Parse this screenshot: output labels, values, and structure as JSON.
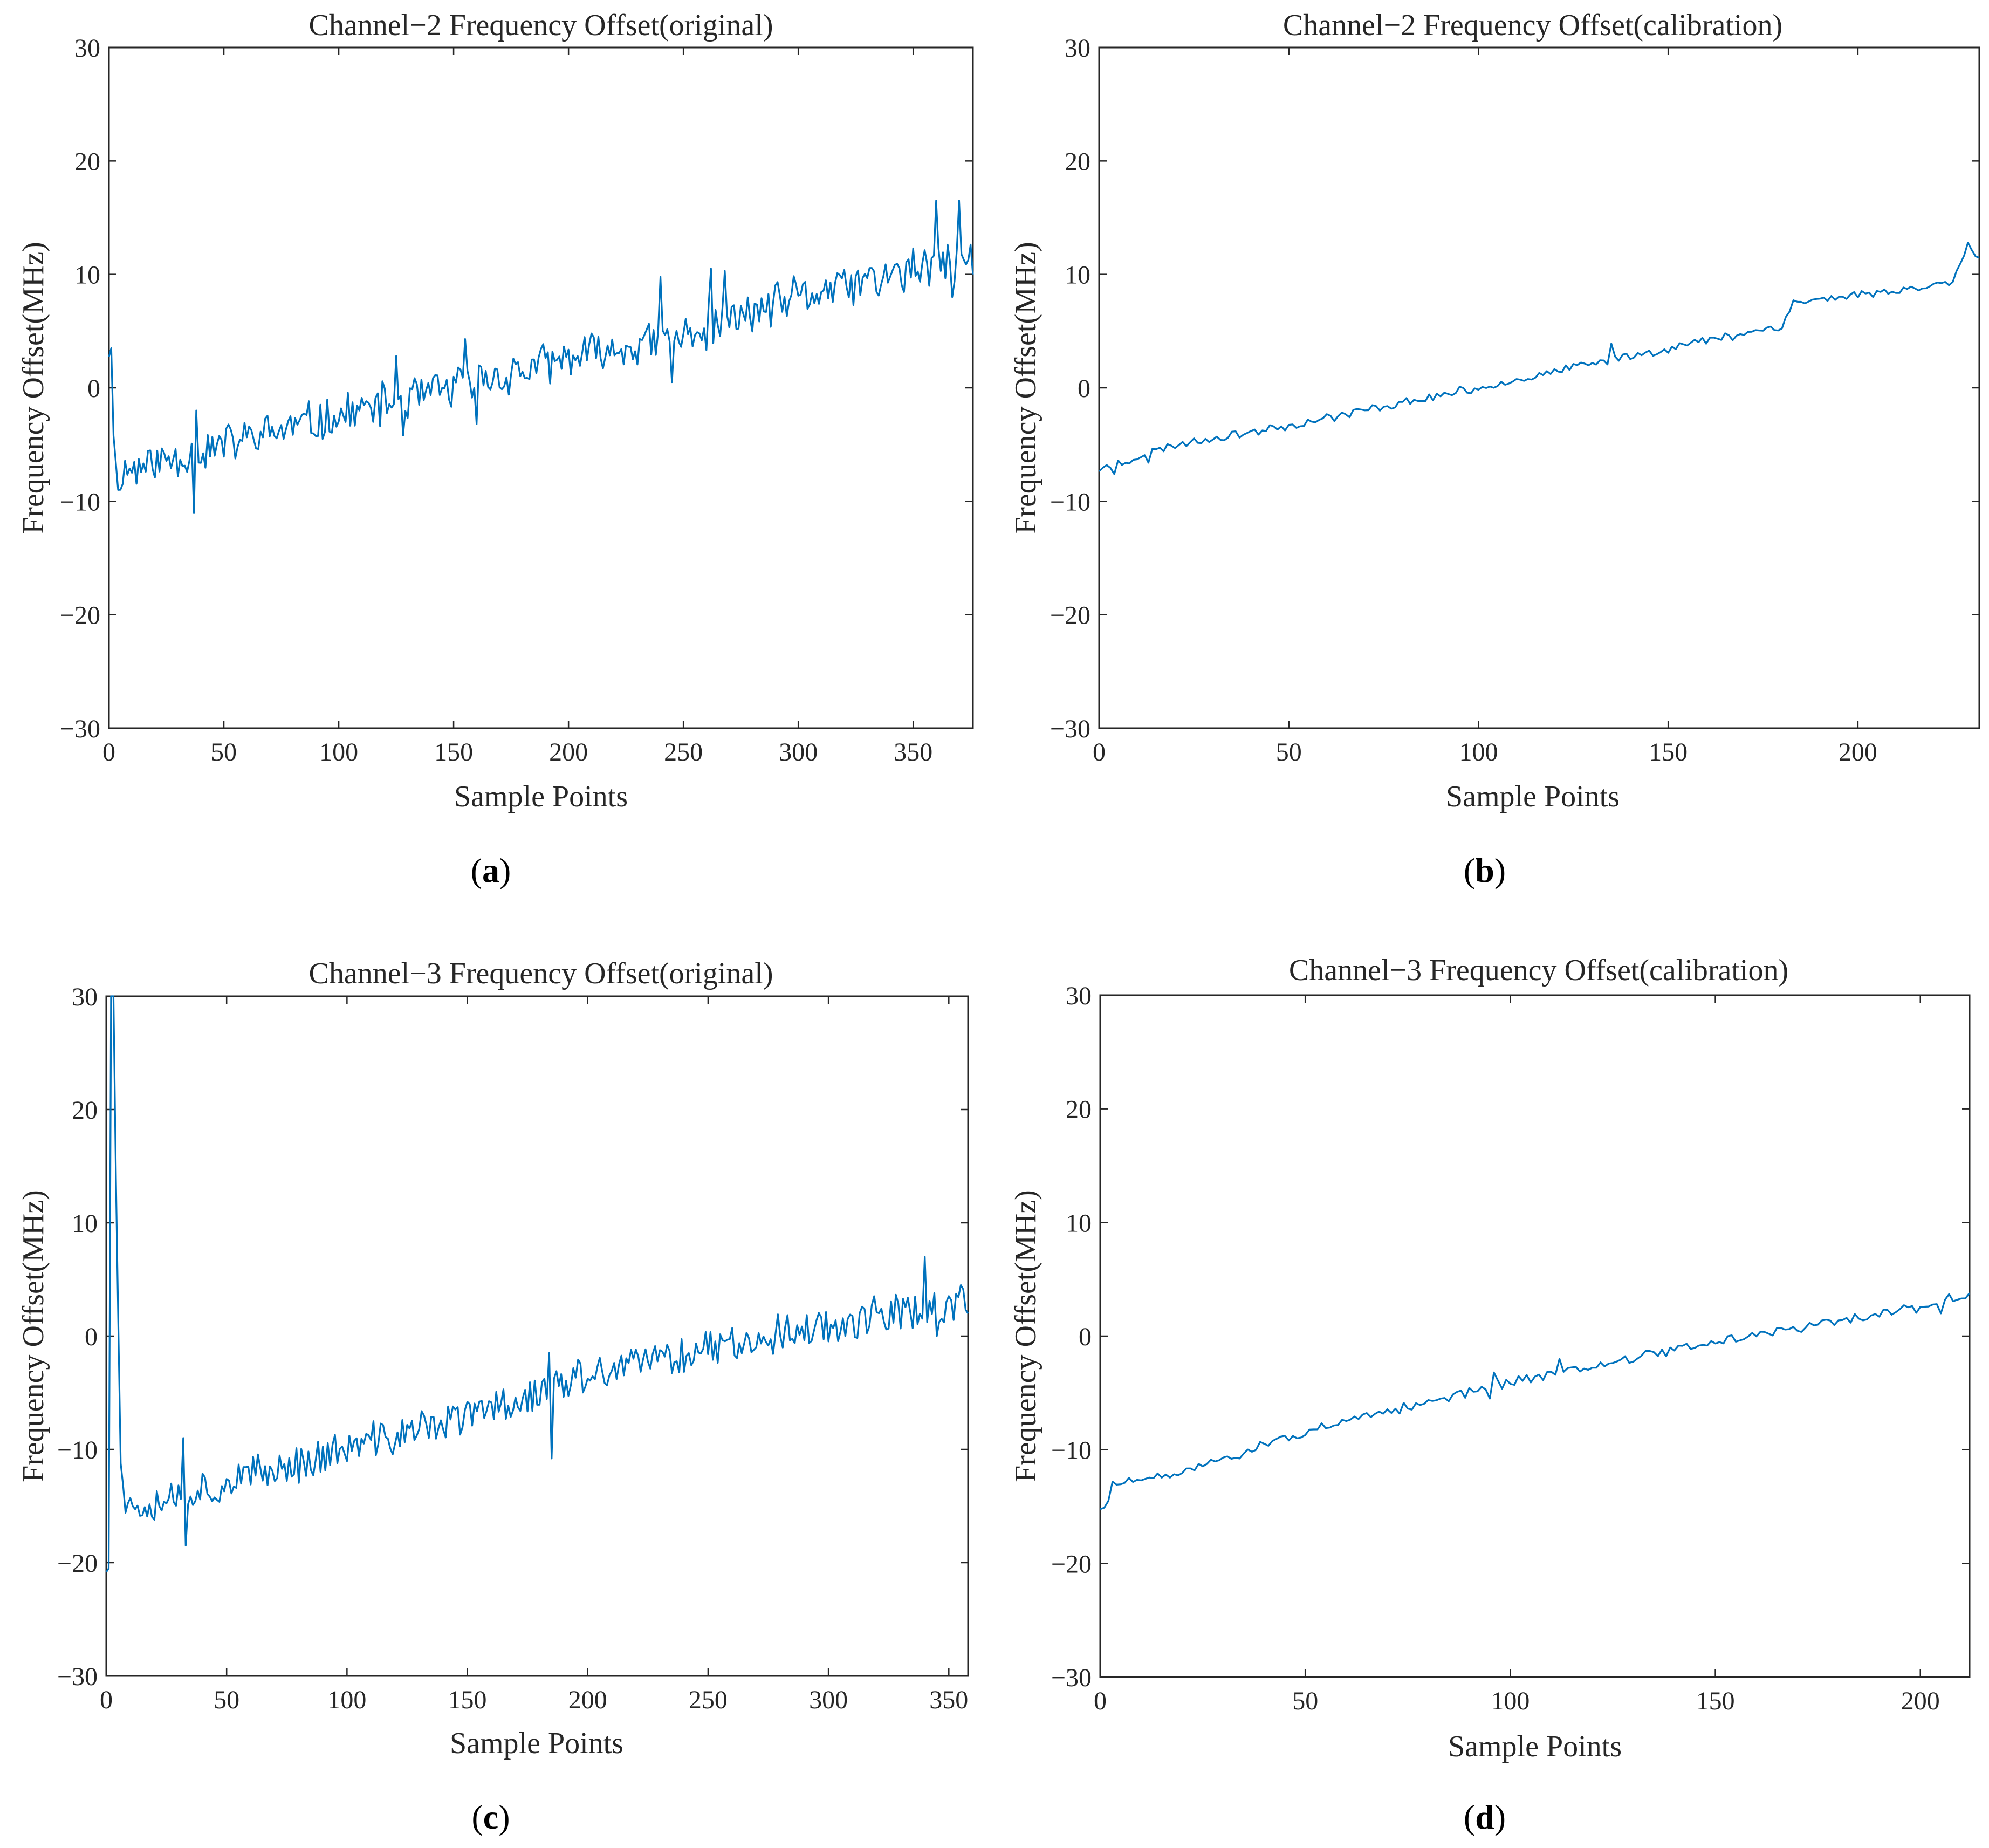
{
  "colors": {
    "series": "#0072BD",
    "axis": "#262626",
    "background": "#ffffff"
  },
  "panels": [
    {
      "id": "a",
      "label_open": "(",
      "label_letter": "a",
      "label_close": ")"
    },
    {
      "id": "b",
      "label_open": "(",
      "label_letter": "b",
      "label_close": ")"
    },
    {
      "id": "c",
      "label_open": "(",
      "label_letter": "c",
      "label_close": ")"
    },
    {
      "id": "d",
      "label_open": "(",
      "label_letter": "d",
      "label_close": ")"
    }
  ],
  "chart_data": [
    {
      "type": "line",
      "title": "Channel−2 Frequency Offset(original)",
      "xlabel": "Sample Points",
      "ylabel": "Frequency Offset(MHz)",
      "xlim": [
        0,
        376
      ],
      "ylim": [
        -30,
        30
      ],
      "xticks": [
        0,
        50,
        100,
        150,
        200,
        250,
        300,
        350
      ],
      "yticks": [
        -30,
        -20,
        -10,
        0,
        10,
        20,
        30
      ],
      "grid": false,
      "n": 376,
      "x_start": 0,
      "trend": [
        [
          0,
          3.5
        ],
        [
          3,
          -7.5
        ],
        [
          40,
          -5.5
        ],
        [
          100,
          -2.5
        ],
        [
          150,
          0.0
        ],
        [
          200,
          2.5
        ],
        [
          250,
          4.5
        ],
        [
          300,
          8.0
        ],
        [
          376,
          11.5
        ]
      ],
      "noise_amplitude": 2.2,
      "seed": 11,
      "highlights": [
        [
          1,
          3.5
        ],
        [
          4,
          -9.0
        ],
        [
          37,
          -11.0
        ],
        [
          38,
          -2.0
        ],
        [
          125,
          2.8
        ],
        [
          128,
          -4.2
        ],
        [
          155,
          4.3
        ],
        [
          160,
          -3.2
        ],
        [
          240,
          9.8
        ],
        [
          245,
          0.5
        ],
        [
          262,
          10.5
        ],
        [
          268,
          10.3
        ],
        [
          360,
          16.5
        ],
        [
          367,
          8.0
        ],
        [
          370,
          16.5
        ],
        [
          376,
          10.0
        ]
      ]
    },
    {
      "type": "line",
      "title": "Channel−2 Frequency Offset(calibration)",
      "xlabel": "Sample Points",
      "ylabel": "Frequency Offset(MHz)",
      "xlim": [
        0,
        232
      ],
      "ylim": [
        -30,
        30
      ],
      "xticks": [
        0,
        50,
        100,
        150,
        200
      ],
      "yticks": [
        -30,
        -20,
        -10,
        0,
        10,
        20,
        30
      ],
      "grid": false,
      "n": 232,
      "x_start": 0,
      "trend": [
        [
          0,
          -7.2
        ],
        [
          20,
          -5.0
        ],
        [
          50,
          -3.3
        ],
        [
          100,
          0.0
        ],
        [
          150,
          3.5
        ],
        [
          180,
          5.5
        ],
        [
          183,
          7.5
        ],
        [
          220,
          9.0
        ],
        [
          225,
          9.5
        ],
        [
          229,
          12.8
        ],
        [
          232,
          11.3
        ]
      ],
      "noise_amplitude": 0.45,
      "seed": 23,
      "highlights": [
        [
          4,
          -7.6
        ],
        [
          5,
          -6.4
        ],
        [
          13,
          -6.6
        ],
        [
          135,
          3.9
        ],
        [
          187,
          7.6
        ]
      ]
    },
    {
      "type": "line",
      "title": "Channel−3 Frequency Offset(original)",
      "xlabel": "Sample Points",
      "ylabel": "Frequency Offset(MHz)",
      "xlim": [
        0,
        358
      ],
      "ylim": [
        -30,
        30
      ],
      "xticks": [
        0,
        50,
        100,
        150,
        200,
        250,
        300,
        350
      ],
      "yticks": [
        -30,
        -20,
        -10,
        0,
        10,
        20,
        30
      ],
      "grid": false,
      "n": 358,
      "x_start": 0,
      "trend": [
        [
          0,
          -20.0
        ],
        [
          3,
          30.0
        ],
        [
          4,
          14.0
        ],
        [
          6,
          -10.0
        ],
        [
          8,
          -15.0
        ],
        [
          50,
          -13.0
        ],
        [
          100,
          -10.0
        ],
        [
          150,
          -7.0
        ],
        [
          200,
          -3.5
        ],
        [
          250,
          -1.0
        ],
        [
          300,
          1.0
        ],
        [
          358,
          3.0
        ]
      ],
      "noise_amplitude": 2.0,
      "seed": 37,
      "highlights": [
        [
          1,
          -20.5
        ],
        [
          2,
          30.0
        ],
        [
          3,
          30.0
        ],
        [
          4,
          14.0
        ],
        [
          33,
          -18.5
        ],
        [
          32,
          -9.0
        ],
        [
          185,
          -10.8
        ],
        [
          184,
          -1.5
        ],
        [
          340,
          7.0
        ],
        [
          345,
          0.0
        ],
        [
          355,
          4.5
        ],
        [
          358,
          2.0
        ]
      ]
    },
    {
      "type": "line",
      "title": "Channel−3 Frequency Offset(calibration)",
      "xlabel": "Sample Points",
      "ylabel": "Frequency Offset(MHz)",
      "xlim": [
        0,
        212
      ],
      "ylim": [
        -30,
        30
      ],
      "xticks": [
        0,
        50,
        100,
        150,
        200
      ],
      "yticks": [
        -30,
        -20,
        -10,
        0,
        10,
        20,
        30
      ],
      "grid": false,
      "n": 212,
      "x_start": 0,
      "trend": [
        [
          1,
          -15.0
        ],
        [
          3,
          -13.0
        ],
        [
          15,
          -12.5
        ],
        [
          50,
          -8.5
        ],
        [
          100,
          -4.0
        ],
        [
          150,
          -0.5
        ],
        [
          200,
          2.5
        ],
        [
          212,
          3.8
        ]
      ],
      "noise_amplitude": 0.5,
      "seed": 51,
      "highlights": [
        [
          1,
          -15.1
        ],
        [
          2,
          -14.5
        ],
        [
          95,
          -5.5
        ],
        [
          96,
          -3.2
        ],
        [
          112,
          -2.0
        ],
        [
          205,
          2.0
        ],
        [
          207,
          3.7
        ],
        [
          212,
          3.8
        ]
      ]
    }
  ]
}
